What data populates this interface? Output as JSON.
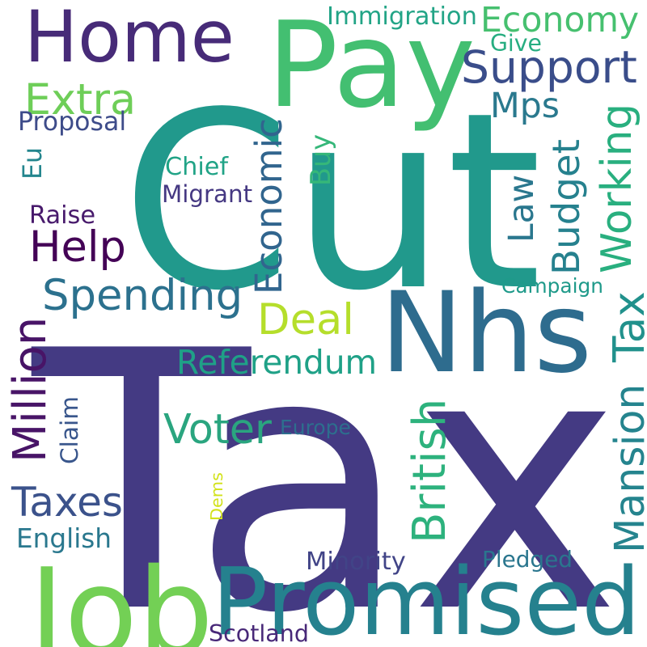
{
  "words": [
    {
      "text": "Tax",
      "color": "#443a83"
    },
    {
      "text": "Cut",
      "color": "#21998c"
    },
    {
      "text": "Nhs",
      "color": "#2e6c8e"
    },
    {
      "text": "Pay",
      "color": "#43bf71"
    },
    {
      "text": "Promised",
      "color": "#25818e"
    },
    {
      "text": "Job",
      "color": "#73d055"
    },
    {
      "text": "Home",
      "color": "#472b78"
    },
    {
      "text": "Economy",
      "color": "#46c06f"
    },
    {
      "text": "Support",
      "color": "#3a4d8a"
    },
    {
      "text": "Immigration",
      "color": "#22a486"
    },
    {
      "text": "Give",
      "color": "#27ad81"
    },
    {
      "text": "Extra",
      "color": "#6ece58"
    },
    {
      "text": "Mps",
      "color": "#2a798e"
    },
    {
      "text": "Proposal",
      "color": "#3e4c8a"
    },
    {
      "text": "Eu",
      "color": "#24868e"
    },
    {
      "text": "Buy",
      "color": "#35b779"
    },
    {
      "text": "Economic",
      "color": "#31658e"
    },
    {
      "text": "Chief",
      "color": "#20a386"
    },
    {
      "text": "Migrant",
      "color": "#453882"
    },
    {
      "text": "Law",
      "color": "#2a778e"
    },
    {
      "text": "Budget",
      "color": "#26818e"
    },
    {
      "text": "Working",
      "color": "#29af7f"
    },
    {
      "text": "Raise",
      "color": "#481a6c"
    },
    {
      "text": "Help",
      "color": "#440256"
    },
    {
      "text": "Spending",
      "color": "#2c718e"
    },
    {
      "text": "Campaign",
      "color": "#1f9a8a"
    },
    {
      "text": "Deal",
      "color": "#b5de2b"
    },
    {
      "text": "Tax",
      "color": "#21918c"
    },
    {
      "text": "Million",
      "color": "#481467"
    },
    {
      "text": "Referendum",
      "color": "#1fa187"
    },
    {
      "text": "Mansion",
      "color": "#25848e"
    },
    {
      "text": "Voter",
      "color": "#2aa57f"
    },
    {
      "text": "British",
      "color": "#2db27d"
    },
    {
      "text": "Europe",
      "color": "#2d6f8e"
    },
    {
      "text": "Claim",
      "color": "#39568c"
    },
    {
      "text": "Taxes",
      "color": "#3b528b"
    },
    {
      "text": "Dems",
      "color": "#d2e21b"
    },
    {
      "text": "English",
      "color": "#2a788e"
    },
    {
      "text": "Minority",
      "color": "#414487"
    },
    {
      "text": "Pledged",
      "color": "#2a768e"
    },
    {
      "text": "Scotland",
      "color": "#482878"
    }
  ]
}
